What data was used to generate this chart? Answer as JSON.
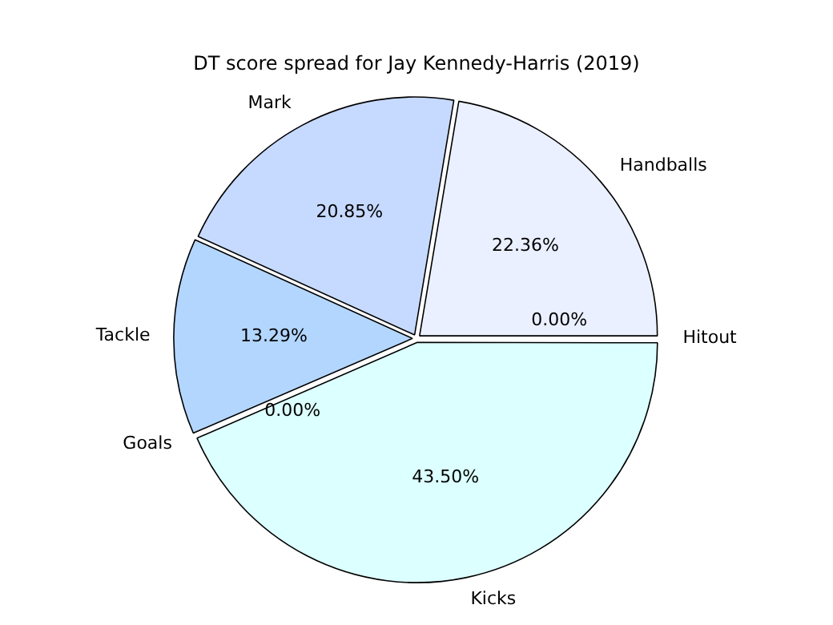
{
  "chart_data": {
    "type": "pie",
    "title": "DT score spread for Jay Kennedy-Harris (2019)",
    "categories": [
      "Hitout",
      "Kicks",
      "Goals",
      "Tackle",
      "Mark",
      "Handballs"
    ],
    "values": [
      0,
      43.5,
      0,
      13.29,
      20.85,
      22.36
    ],
    "value_labels": [
      "0.00%",
      "43.50%",
      "0.00%",
      "13.29%",
      "20.85%",
      "22.36%"
    ],
    "colors": [
      "#eef4ff",
      "#dcffff",
      "#b3d6ff",
      "#b3d6ff",
      "#c6d9ff",
      "#eaf0ff"
    ],
    "legend": false
  }
}
